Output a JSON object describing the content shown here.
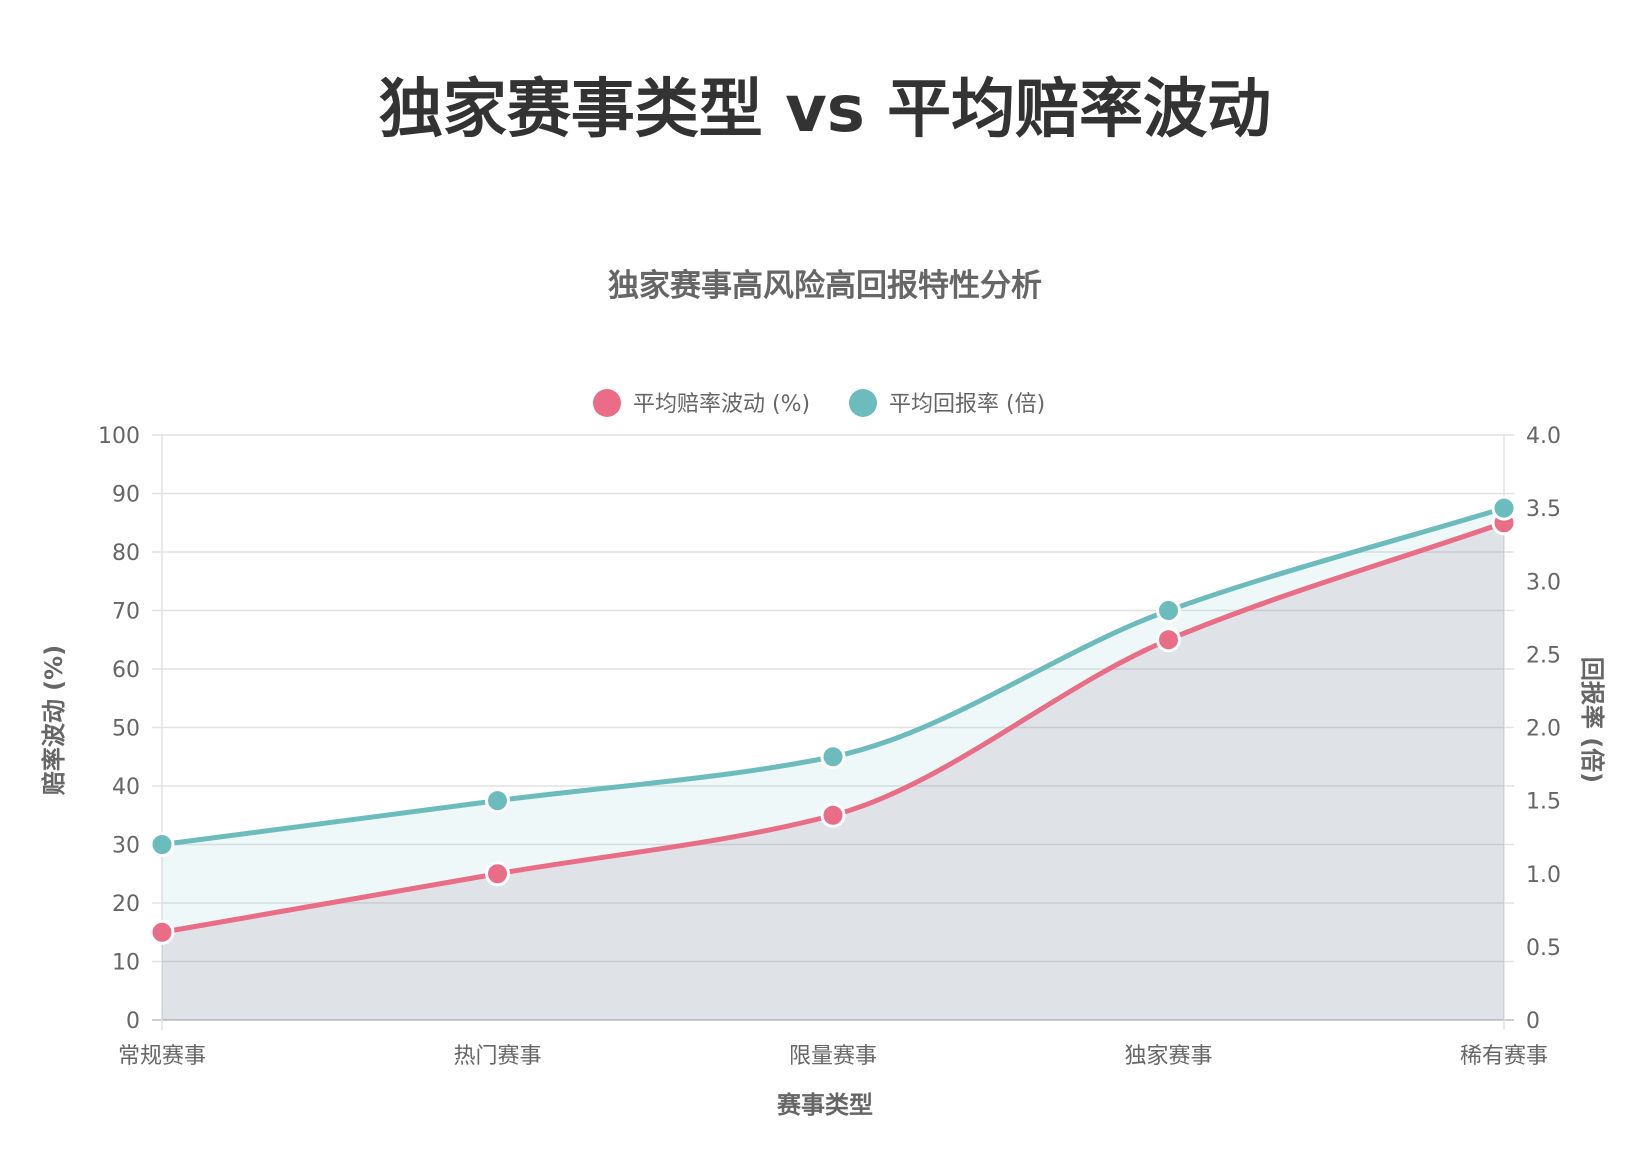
{
  "page": {
    "title": "独家赛事类型 vs 平均赔率波动"
  },
  "chart_data": {
    "type": "line",
    "title": "独家赛事高风险高回报特性分析",
    "categories": [
      "常规赛事",
      "热门赛事",
      "限量赛事",
      "独家赛事",
      "稀有赛事"
    ],
    "xlabel": "赛事类型",
    "ylabel_left": "赔率波动 (%)",
    "ylabel_right": "回报率 (倍)",
    "y_left": {
      "min": 0,
      "max": 100,
      "step": 10
    },
    "y_right": {
      "min": 0,
      "max": 4.0,
      "step": 0.5
    },
    "grid": true,
    "legend_position": "top",
    "series": [
      {
        "name": "平均赔率波动 (%)",
        "axis": "left",
        "values": [
          15,
          25,
          35,
          65,
          85
        ],
        "color": "#e96d86",
        "fill": "rgba(120, 70, 110, 0.13)"
      },
      {
        "name": "平均回报率 (倍)",
        "axis": "right",
        "values": [
          1.2,
          1.5,
          1.8,
          2.8,
          3.5
        ],
        "color": "#6dbcbd",
        "fill": "rgba(109, 188, 189, 0.11)"
      }
    ]
  }
}
